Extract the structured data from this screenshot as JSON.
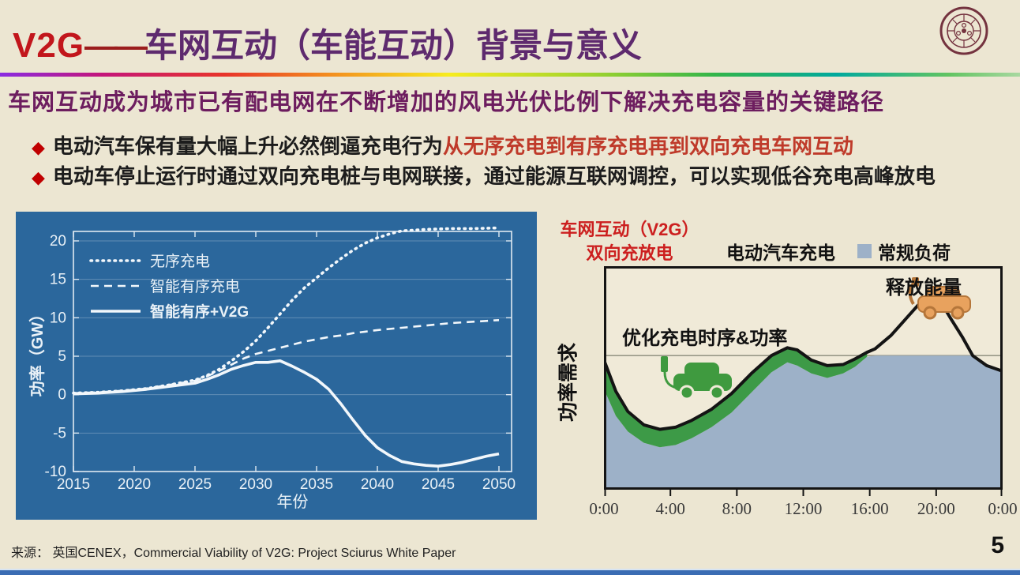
{
  "page": {
    "number": "5"
  },
  "header": {
    "title_v2g": "V2G",
    "title_dash": "——",
    "title_rest": "车网互动（车能互动）背景与意义"
  },
  "subtitle": "车网互动成为城市已有配电网在不断增加的风电光伏比例下解决充电容量的关键路径",
  "bullets": [
    {
      "marker": "◆",
      "black": "电动汽车保有量大幅上升必然倒逼充电行为",
      "red": "从无序充电到有序充电再到双向充电车网互动"
    },
    {
      "marker": "◆",
      "black": "电动车停止运行时通过双向充电桩与电网联接，通过能源互联网调控，可以实现低谷充电高峰放电",
      "red": ""
    }
  ],
  "source": "来源： 英国CENEX，Commercial Viability of V2G: Project Sciurus White Paper",
  "colors": {
    "chart_bg": "#2b679c",
    "chart_line": "#f2f7fb",
    "chart_axis": "#dfe9f2",
    "grid": "rgba(255,255,255,0.25)",
    "base_load_fill": "#9db1c8",
    "ev_green": "#3d9a47",
    "car_green": "#3f9a3f",
    "car_orange": "#e8a25e",
    "car_orange_line": "#b5763a",
    "plot_cream": "#f0ead8",
    "black": "#141414",
    "ref_line": "#8a8a7a"
  },
  "chart_data": [
    {
      "type": "line",
      "title": "",
      "xlabel": "年份",
      "ylabel": "功率（GW）",
      "xlim": [
        2014,
        2051
      ],
      "ylim": [
        -10,
        21.3
      ],
      "xticks": [
        2015,
        2020,
        2025,
        2030,
        2035,
        2040,
        2045,
        2050
      ],
      "yticks": [
        -10,
        -5,
        0,
        5,
        10,
        15,
        20
      ],
      "grid": "horizontal",
      "legend_position": "top-left",
      "series": [
        {
          "name": "无序充电",
          "style": "dotted",
          "points": [
            [
              2015,
              0.2
            ],
            [
              2017,
              0.3
            ],
            [
              2019,
              0.5
            ],
            [
              2021,
              0.8
            ],
            [
              2023,
              1.3
            ],
            [
              2025,
              1.9
            ],
            [
              2026,
              2.5
            ],
            [
              2027,
              3.3
            ],
            [
              2028,
              4.4
            ],
            [
              2029,
              5.6
            ],
            [
              2030,
              7.0
            ],
            [
              2031,
              8.7
            ],
            [
              2032,
              10.5
            ],
            [
              2033,
              12.3
            ],
            [
              2034,
              13.9
            ],
            [
              2035,
              15.2
            ],
            [
              2036,
              16.5
            ],
            [
              2037,
              17.7
            ],
            [
              2038,
              18.8
            ],
            [
              2039,
              19.7
            ],
            [
              2040,
              20.4
            ],
            [
              2041,
              20.9
            ],
            [
              2042,
              21.3
            ],
            [
              2043,
              21.4
            ],
            [
              2044,
              21.5
            ],
            [
              2046,
              21.6
            ],
            [
              2048,
              21.6
            ],
            [
              2050,
              21.7
            ]
          ]
        },
        {
          "name": "智能有序充电",
          "style": "dashed",
          "points": [
            [
              2015,
              0.2
            ],
            [
              2017,
              0.3
            ],
            [
              2019,
              0.5
            ],
            [
              2021,
              0.8
            ],
            [
              2023,
              1.3
            ],
            [
              2025,
              1.8
            ],
            [
              2026,
              2.4
            ],
            [
              2027,
              3.1
            ],
            [
              2028,
              3.9
            ],
            [
              2029,
              4.7
            ],
            [
              2030,
              5.3
            ],
            [
              2031,
              5.7
            ],
            [
              2032,
              6.1
            ],
            [
              2033,
              6.5
            ],
            [
              2034,
              6.9
            ],
            [
              2035,
              7.2
            ],
            [
              2036,
              7.5
            ],
            [
              2037,
              7.7
            ],
            [
              2038,
              8.0
            ],
            [
              2039,
              8.2
            ],
            [
              2040,
              8.4
            ],
            [
              2042,
              8.7
            ],
            [
              2044,
              9.0
            ],
            [
              2046,
              9.3
            ],
            [
              2048,
              9.5
            ],
            [
              2050,
              9.7
            ]
          ]
        },
        {
          "name": "智能有序+V2G",
          "style": "solid",
          "points": [
            [
              2015,
              0.1
            ],
            [
              2017,
              0.2
            ],
            [
              2019,
              0.4
            ],
            [
              2021,
              0.7
            ],
            [
              2023,
              1.1
            ],
            [
              2025,
              1.5
            ],
            [
              2026,
              2.0
            ],
            [
              2027,
              2.6
            ],
            [
              2028,
              3.3
            ],
            [
              2029,
              3.8
            ],
            [
              2030,
              4.2
            ],
            [
              2031,
              4.2
            ],
            [
              2032,
              4.4
            ],
            [
              2033,
              3.7
            ],
            [
              2034,
              2.9
            ],
            [
              2035,
              2.0
            ],
            [
              2036,
              0.7
            ],
            [
              2037,
              -1.2
            ],
            [
              2038,
              -3.3
            ],
            [
              2039,
              -5.3
            ],
            [
              2040,
              -6.9
            ],
            [
              2041,
              -7.9
            ],
            [
              2042,
              -8.7
            ],
            [
              2043,
              -9.0
            ],
            [
              2044,
              -9.2
            ],
            [
              2045,
              -9.3
            ],
            [
              2046,
              -9.1
            ],
            [
              2047,
              -8.8
            ],
            [
              2048,
              -8.4
            ],
            [
              2049,
              -8.0
            ],
            [
              2050,
              -7.7
            ]
          ]
        }
      ]
    },
    {
      "type": "area",
      "title": "",
      "header_line1": "车网互动（V2G）",
      "header_line2": "双向充放电",
      "ylabel": "功率需求",
      "legend": [
        {
          "label": "电动汽车充电"
        },
        {
          "label": "常规负荷",
          "color": "#9db1c8"
        }
      ],
      "xtick_labels": [
        "0:00",
        "4:00",
        "8:00",
        "12:00",
        "16:00",
        "20:00",
        "0:00"
      ],
      "annotations": [
        "优化充电时序&功率",
        "释放能量"
      ],
      "reference_level": 0.4,
      "curves": {
        "total_black": [
          [
            0,
            0.42
          ],
          [
            0.03,
            0.56
          ],
          [
            0.06,
            0.65
          ],
          [
            0.1,
            0.71
          ],
          [
            0.14,
            0.73
          ],
          [
            0.18,
            0.72
          ],
          [
            0.22,
            0.69
          ],
          [
            0.27,
            0.64
          ],
          [
            0.32,
            0.57
          ],
          [
            0.37,
            0.48
          ],
          [
            0.42,
            0.4
          ],
          [
            0.46,
            0.365
          ],
          [
            0.485,
            0.375
          ],
          [
            0.52,
            0.42
          ],
          [
            0.56,
            0.445
          ],
          [
            0.6,
            0.44
          ],
          [
            0.63,
            0.415
          ],
          [
            0.66,
            0.385
          ],
          [
            0.68,
            0.37
          ],
          [
            0.72,
            0.31
          ],
          [
            0.76,
            0.23
          ],
          [
            0.795,
            0.16
          ],
          [
            0.82,
            0.135
          ],
          [
            0.845,
            0.16
          ],
          [
            0.87,
            0.235
          ],
          [
            0.9,
            0.32
          ],
          [
            0.925,
            0.4
          ],
          [
            0.96,
            0.445
          ],
          [
            1.0,
            0.47
          ]
        ],
        "base_blue_top": [
          [
            0,
            0.55
          ],
          [
            0.03,
            0.67
          ],
          [
            0.06,
            0.74
          ],
          [
            0.1,
            0.79
          ],
          [
            0.14,
            0.81
          ],
          [
            0.18,
            0.8
          ],
          [
            0.22,
            0.77
          ],
          [
            0.27,
            0.72
          ],
          [
            0.32,
            0.655
          ],
          [
            0.37,
            0.565
          ],
          [
            0.42,
            0.475
          ],
          [
            0.46,
            0.43
          ],
          [
            0.485,
            0.445
          ],
          [
            0.52,
            0.48
          ],
          [
            0.56,
            0.5
          ],
          [
            0.6,
            0.48
          ],
          [
            0.63,
            0.45
          ],
          [
            0.66,
            0.405
          ],
          [
            0.68,
            0.4
          ],
          [
            0.92,
            0.4
          ],
          [
            0.925,
            0.4
          ],
          [
            0.96,
            0.445
          ],
          [
            1.0,
            0.47
          ]
        ],
        "green_band_end": 0.66
      }
    }
  ]
}
